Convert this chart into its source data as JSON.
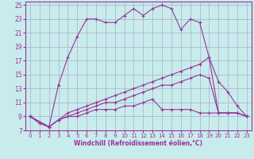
{
  "xlabel": "Windchill (Refroidissement éolien,°C)",
  "xlim": [
    -0.5,
    23.5
  ],
  "ylim": [
    7,
    25.5
  ],
  "yticks": [
    7,
    9,
    11,
    13,
    15,
    17,
    19,
    21,
    23,
    25
  ],
  "xticks": [
    0,
    1,
    2,
    3,
    4,
    5,
    6,
    7,
    8,
    9,
    10,
    11,
    12,
    13,
    14,
    15,
    16,
    17,
    18,
    19,
    20,
    21,
    22,
    23
  ],
  "background_color": "#c8ecec",
  "grid_color": "#aaaacc",
  "line_color": "#993399",
  "line1_x": [
    0,
    1,
    2,
    3,
    4,
    5,
    6,
    7,
    8,
    9,
    10,
    11,
    12,
    13,
    14,
    15,
    16,
    17,
    18,
    19,
    20,
    21,
    22,
    23
  ],
  "line1_y": [
    9.0,
    8.0,
    7.5,
    13.5,
    17.5,
    20.5,
    23.0,
    23.0,
    22.5,
    22.5,
    23.5,
    24.5,
    23.5,
    24.5,
    25.0,
    24.5,
    21.5,
    23.0,
    22.5,
    17.5,
    14.0,
    12.5,
    10.5,
    9.0
  ],
  "line2_x": [
    0,
    2,
    3,
    4,
    5,
    6,
    7,
    8,
    9,
    10,
    11,
    12,
    13,
    14,
    15,
    16,
    17,
    18,
    19,
    20,
    21,
    22,
    23
  ],
  "line2_y": [
    9.0,
    7.5,
    8.5,
    9.5,
    10.0,
    10.5,
    11.0,
    11.5,
    12.0,
    12.5,
    13.0,
    13.5,
    14.0,
    14.5,
    15.0,
    15.5,
    16.0,
    16.5,
    17.5,
    9.5,
    9.5,
    9.5,
    9.0
  ],
  "line3_x": [
    0,
    2,
    3,
    4,
    5,
    6,
    7,
    8,
    9,
    10,
    11,
    12,
    13,
    14,
    15,
    16,
    17,
    18,
    19,
    20,
    21,
    22,
    23
  ],
  "line3_y": [
    9.0,
    7.5,
    8.5,
    9.0,
    9.5,
    10.0,
    10.5,
    11.0,
    11.0,
    11.5,
    12.0,
    12.5,
    13.0,
    13.5,
    13.5,
    14.0,
    14.5,
    15.0,
    14.5,
    9.5,
    9.5,
    9.5,
    9.0
  ],
  "line4_x": [
    0,
    2,
    3,
    4,
    5,
    6,
    7,
    8,
    9,
    10,
    11,
    12,
    13,
    14,
    15,
    16,
    17,
    18,
    19,
    20,
    21,
    22,
    23
  ],
  "line4_y": [
    9.0,
    7.5,
    8.5,
    9.0,
    9.0,
    9.5,
    10.0,
    10.0,
    10.0,
    10.5,
    10.5,
    11.0,
    11.5,
    10.0,
    10.0,
    10.0,
    10.0,
    9.5,
    9.5,
    9.5,
    9.5,
    9.5,
    9.0
  ]
}
